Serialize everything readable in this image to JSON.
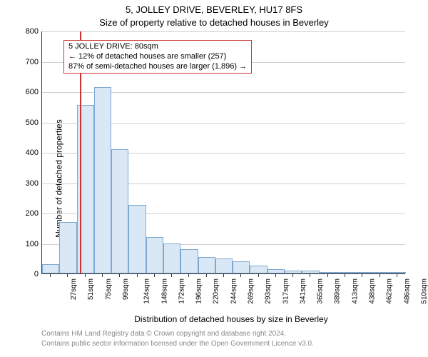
{
  "title_line1": "5, JOLLEY DRIVE, BEVERLEY, HU17 8FS",
  "title_line2": "Size of property relative to detached houses in Beverley",
  "ylabel": "Number of detached properties",
  "xlabel": "Distribution of detached houses by size in Beverley",
  "footer_line1": "Contains HM Land Registry data © Crown copyright and database right 2024.",
  "footer_line2": "Contains public sector information licensed under the Open Government Licence v3.0.",
  "chart": {
    "type": "histogram",
    "ylim": [
      0,
      800
    ],
    "ytick_step": 100,
    "background_color": "#ffffff",
    "grid_color": "#d0d0d0",
    "bar_fill": "#dae8f5",
    "bar_stroke": "#7fa8d0",
    "vline_x_index": 2,
    "vline_offset": 0.2,
    "vline_color": "#cc3333",
    "axis_color": "#333333",
    "label_fontsize": 12,
    "tick_fontsize": 11,
    "xtick_fontsize": 10,
    "categories": [
      "27sqm",
      "51sqm",
      "75sqm",
      "99sqm",
      "124sqm",
      "148sqm",
      "172sqm",
      "196sqm",
      "220sqm",
      "244sqm",
      "269sqm",
      "293sqm",
      "317sqm",
      "341sqm",
      "365sqm",
      "389sqm",
      "413sqm",
      "438sqm",
      "462sqm",
      "486sqm",
      "510sqm"
    ],
    "values": [
      30,
      170,
      555,
      615,
      410,
      225,
      120,
      100,
      80,
      55,
      50,
      40,
      25,
      15,
      10,
      10,
      5,
      0,
      0,
      0,
      5
    ]
  },
  "annotation": {
    "line1": "5 JOLLEY DRIVE: 80sqm",
    "line2": "← 12% of detached houses are smaller (257)",
    "line3": "87% of semi-detached houses are larger (1,896) →",
    "border_color": "#cc3333",
    "bg_color": "#ffffff",
    "fontsize": 11
  }
}
